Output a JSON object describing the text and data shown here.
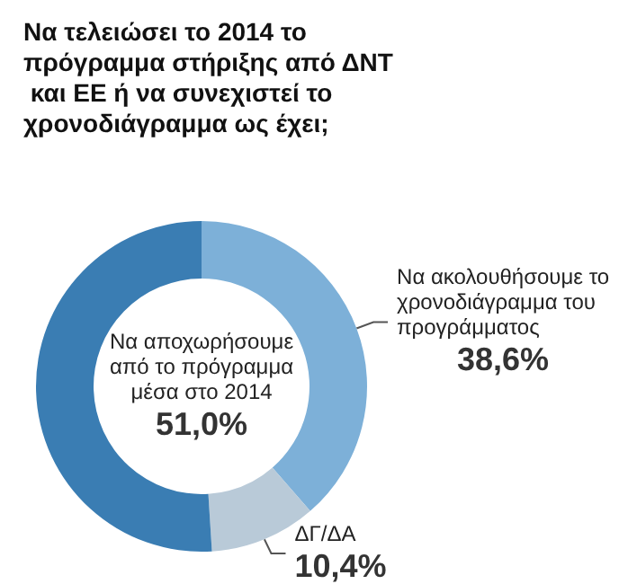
{
  "chart_data": {
    "type": "donut",
    "title": "Να τελειώσει το 2014 το πρόγραμμα στήριξης από ΔΝΤ και ΕΕ ή να συνεχιστεί το χρονοδιάγραμμα ως έχει;",
    "categories": [
      "Να ακολουθήσουμε το χρονοδιάγραμμα του προγράμματος",
      "ΔΓ/ΔΑ",
      "Να αποχωρήσουμε από το πρόγραμμα μέσα στο 2014"
    ],
    "values": [
      38.6,
      10.4,
      51.0
    ],
    "value_labels": [
      "38,6%",
      "10,4%",
      "51,0%"
    ],
    "colors": [
      "#7db0d8",
      "#b9cad8",
      "#3a7db3"
    ],
    "legend": false
  }
}
